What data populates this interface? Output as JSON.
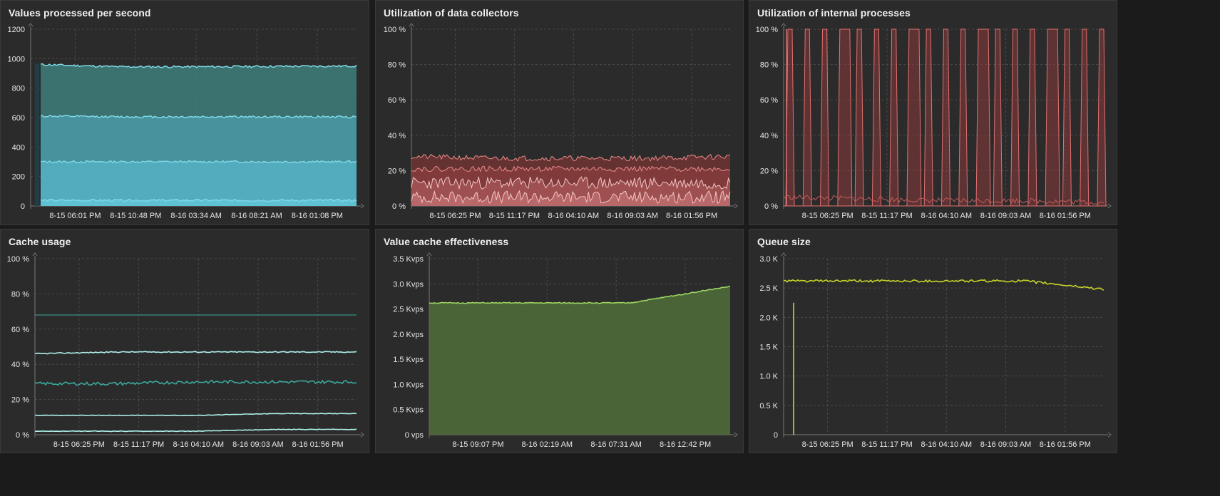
{
  "panels": [
    {
      "title": "Values processed per second",
      "y_ticks": [
        "0",
        "200",
        "400",
        "600",
        "800",
        "1000",
        "1200"
      ],
      "x_ticks": [
        "8-15 06:01 PM",
        "8-15 10:48 PM",
        "8-16 03:34 AM",
        "8-16 08:21 AM",
        "8-16 01:08 PM"
      ],
      "colors": {
        "series": "#7fd8e6",
        "fill": "#4fb6c9"
      }
    },
    {
      "title": "Utilization of data collectors",
      "y_ticks": [
        "0 %",
        "20 %",
        "40 %",
        "60 %",
        "80 %",
        "100 %"
      ],
      "x_ticks": [
        "8-15 06:25 PM",
        "8-15 11:17 PM",
        "8-16 04:10 AM",
        "8-16 09:03 AM",
        "8-16 01:56 PM"
      ],
      "colors": {
        "series": "#e88a8a",
        "fill": "#a84a4a"
      }
    },
    {
      "title": "Utilization of internal processes",
      "y_ticks": [
        "0 %",
        "20 %",
        "40 %",
        "60 %",
        "80 %",
        "100 %"
      ],
      "x_ticks": [
        "8-15 06:25 PM",
        "8-15 11:17 PM",
        "8-16 04:10 AM",
        "8-16 09:03 AM",
        "8-16 01:56 PM"
      ],
      "colors": {
        "series": "#e07070",
        "fill": "#8a3a3a"
      }
    },
    {
      "title": "Cache usage",
      "y_ticks": [
        "0 %",
        "20 %",
        "40 %",
        "60 %",
        "80 %",
        "100 %"
      ],
      "x_ticks": [
        "8-15 06:25 PM",
        "8-15 11:17 PM",
        "8-16 04:10 AM",
        "8-16 09:03 AM",
        "8-16 01:56 PM"
      ],
      "colors": {
        "series": "#aef0ea",
        "dark": "#3ba99c"
      }
    },
    {
      "title": "Value cache effectiveness",
      "y_ticks": [
        "0 vps",
        "0.5 Kvps",
        "1.0 Kvps",
        "1.5 Kvps",
        "2.0 Kvps",
        "2.5 Kvps",
        "3.0 Kvps",
        "3.5 Kvps"
      ],
      "x_ticks": [
        "8-15 09:07 PM",
        "8-16 02:19 AM",
        "8-16 07:31 AM",
        "8-16 12:42 PM"
      ],
      "colors": {
        "series": "#9cd85f",
        "fill": "#4f6a38"
      }
    },
    {
      "title": "Queue size",
      "y_ticks": [
        "0",
        "0.5 K",
        "1.0 K",
        "1.5 K",
        "2.0 K",
        "2.5 K",
        "3.0 K"
      ],
      "x_ticks": [
        "8-15 06:25 PM",
        "8-15 11:17 PM",
        "8-16 04:10 AM",
        "8-16 09:03 AM",
        "8-16 01:56 PM"
      ],
      "colors": {
        "series": "#c8d42a"
      }
    }
  ],
  "chart_data": [
    {
      "type": "area",
      "title": "Values processed per second",
      "x": [
        "8-15 06:01 PM",
        "8-15 10:48 PM",
        "8-16 03:34 AM",
        "8-16 08:21 AM",
        "8-16 01:08 PM"
      ],
      "ylim": [
        0,
        1200
      ],
      "series": [
        {
          "values": [
            960,
            945,
            945,
            948,
            950
          ]
        },
        {
          "values": [
            610,
            605,
            605,
            605,
            605
          ]
        },
        {
          "values": [
            300,
            300,
            300,
            300,
            300
          ]
        },
        {
          "values": [
            38,
            38,
            38,
            38,
            38
          ]
        }
      ]
    },
    {
      "type": "area",
      "title": "Utilization of data collectors",
      "x": [
        "8-15 06:25 PM",
        "8-15 11:17 PM",
        "8-16 04:10 AM",
        "8-16 09:03 AM",
        "8-16 01:56 PM"
      ],
      "ylim": [
        0,
        100
      ],
      "series": [
        {
          "values": [
            28,
            27,
            27,
            27,
            28
          ]
        },
        {
          "values": [
            21,
            21,
            21,
            21,
            21
          ]
        },
        {
          "values": [
            13,
            13,
            13,
            13,
            13
          ]
        },
        {
          "values": [
            5,
            5,
            5,
            5,
            5
          ]
        }
      ]
    },
    {
      "type": "area",
      "title": "Utilization of internal processes",
      "x": [
        "8-15 06:25 PM",
        "8-15 11:17 PM",
        "8-16 04:10 AM",
        "8-16 09:03 AM",
        "8-16 01:56 PM"
      ],
      "ylim": [
        0,
        100
      ],
      "series": [
        {
          "values": [
            100,
            0,
            100,
            0,
            100
          ]
        },
        {
          "values": [
            5,
            4,
            3,
            3,
            2
          ]
        }
      ]
    },
    {
      "type": "line",
      "title": "Cache usage",
      "x": [
        "8-15 06:25 PM",
        "8-15 11:17 PM",
        "8-16 04:10 AM",
        "8-16 09:03 AM",
        "8-16 01:56 PM"
      ],
      "ylim": [
        0,
        100
      ],
      "series": [
        {
          "values": [
            68,
            68,
            68,
            68,
            68
          ]
        },
        {
          "values": [
            46,
            47,
            47,
            47,
            47
          ]
        },
        {
          "values": [
            29,
            29,
            30,
            30,
            30
          ]
        },
        {
          "values": [
            11,
            11,
            11,
            12,
            12
          ]
        },
        {
          "values": [
            2,
            2,
            2,
            3,
            3
          ]
        }
      ]
    },
    {
      "type": "area",
      "title": "Value cache effectiveness",
      "x": [
        "8-15 09:07 PM",
        "8-16 02:19 AM",
        "8-16 07:31 AM",
        "8-16 12:42 PM"
      ],
      "ylim": [
        0,
        3.5
      ],
      "series": [
        {
          "values": [
            2.62,
            2.62,
            2.62,
            2.95
          ]
        }
      ]
    },
    {
      "type": "line",
      "title": "Queue size",
      "x": [
        "8-15 06:25 PM",
        "8-15 11:17 PM",
        "8-16 04:10 AM",
        "8-16 09:03 AM",
        "8-16 01:56 PM"
      ],
      "ylim": [
        0,
        3000
      ],
      "series": [
        {
          "values": [
            2620,
            2620,
            2620,
            2620,
            2480
          ]
        }
      ]
    }
  ]
}
